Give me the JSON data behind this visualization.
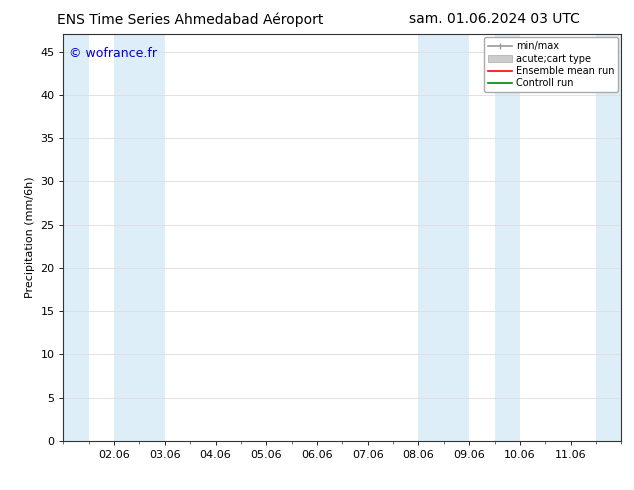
{
  "title_left": "ENS Time Series Ahmedabad Aéroport",
  "title_right": "sam. 01.06.2024 03 UTC",
  "ylabel": "Precipitation (mm/6h)",
  "watermark": "© wofrance.fr",
  "ylim": [
    0,
    47
  ],
  "yticks": [
    0,
    5,
    10,
    15,
    20,
    25,
    30,
    35,
    40,
    45
  ],
  "xlim": [
    0,
    11
  ],
  "xtick_labels": [
    "02.06",
    "03.06",
    "04.06",
    "05.06",
    "06.06",
    "07.06",
    "08.06",
    "09.06",
    "10.06",
    "11.06"
  ],
  "xtick_positions": [
    1,
    2,
    3,
    4,
    5,
    6,
    7,
    8,
    9,
    10
  ],
  "shaded_bands": [
    {
      "x_start": 0.0,
      "x_end": 0.5,
      "color": "#ddeef8"
    },
    {
      "x_start": 1.0,
      "x_end": 2.0,
      "color": "#ddeef8"
    },
    {
      "x_start": 7.0,
      "x_end": 8.0,
      "color": "#ddeef8"
    },
    {
      "x_start": 8.5,
      "x_end": 9.0,
      "color": "#ddeef8"
    },
    {
      "x_start": 10.5,
      "x_end": 11.0,
      "color": "#ddeef8"
    }
  ],
  "legend_entries": [
    {
      "label": "min/max",
      "color": "#999999",
      "type": "hline"
    },
    {
      "label": "acute;cart type",
      "color": "#cccccc",
      "type": "fill"
    },
    {
      "label": "Ensemble mean run",
      "color": "#ff0000",
      "type": "line"
    },
    {
      "label": "Controll run",
      "color": "#008800",
      "type": "line"
    }
  ],
  "background_color": "#ffffff",
  "plot_bg_color": "#ffffff",
  "title_fontsize": 10,
  "axis_fontsize": 8,
  "tick_label_fontsize": 8,
  "watermark_color": "#0000cc",
  "watermark_fontsize": 9,
  "legend_fontsize": 7,
  "grid_color": "#dddddd"
}
